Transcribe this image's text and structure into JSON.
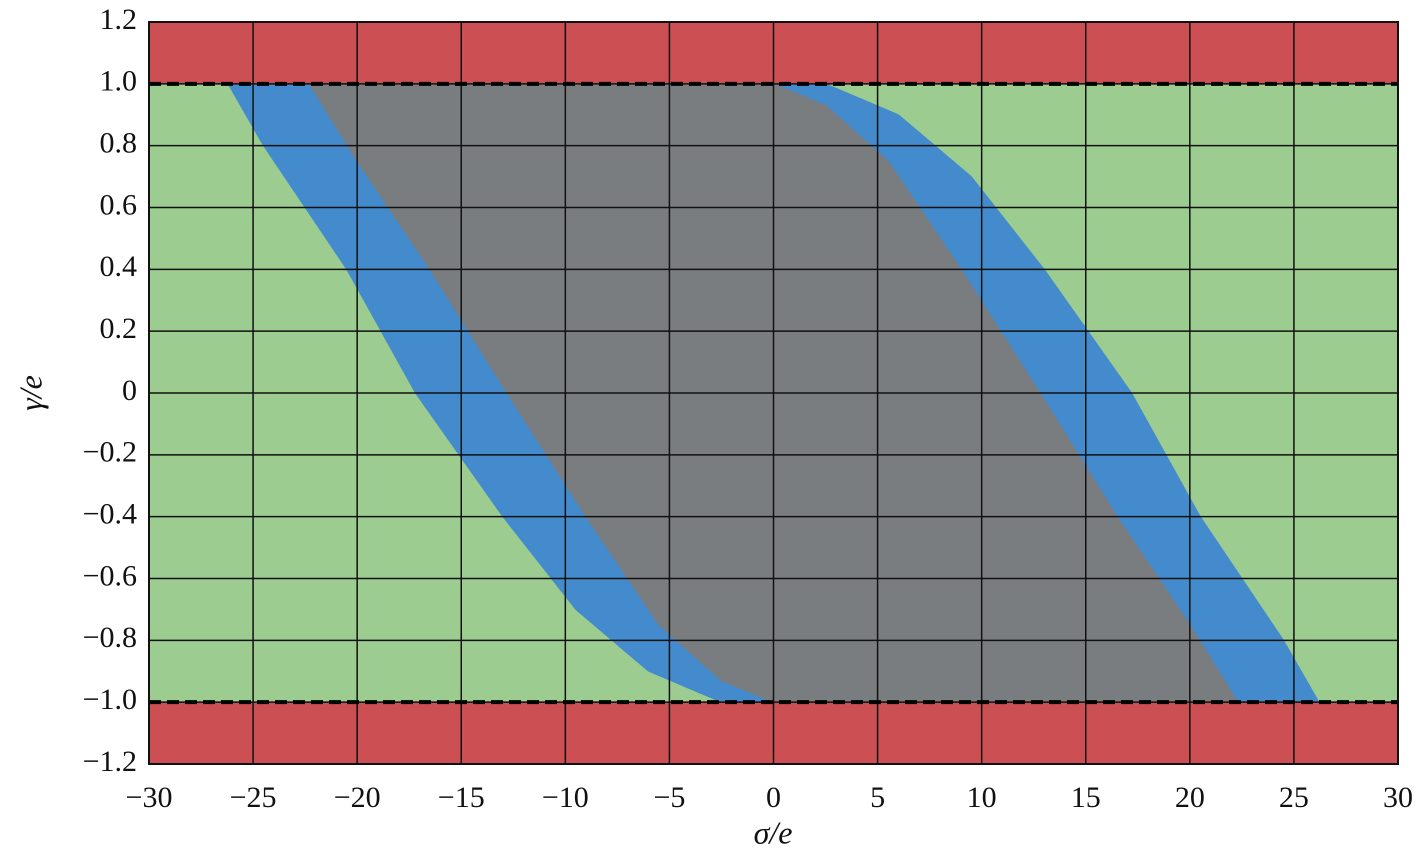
{
  "chart_data": {
    "type": "region",
    "x_label": "σ/e",
    "y_label": "γ/e",
    "xlim": [
      -30,
      30
    ],
    "ylim": [
      -1.2,
      1.2
    ],
    "xticks": [
      {
        "value": -30,
        "label": "−30"
      },
      {
        "value": -25,
        "label": "−25"
      },
      {
        "value": -20,
        "label": "−20"
      },
      {
        "value": -15,
        "label": "−15"
      },
      {
        "value": -10,
        "label": "−10"
      },
      {
        "value": -5,
        "label": "−5"
      },
      0,
      5,
      10,
      15,
      20,
      25,
      30
    ],
    "yticks": [
      {
        "value": -1.2,
        "label": "−1.2"
      },
      {
        "value": -1.0,
        "label": "−1.0"
      },
      {
        "value": -0.8,
        "label": "−0.8"
      },
      {
        "value": -0.6,
        "label": "−0.6"
      },
      {
        "value": -0.4,
        "label": "−0.4"
      },
      {
        "value": -0.2,
        "label": "−0.2"
      },
      0,
      0.2,
      0.4,
      0.6,
      0.8,
      {
        "value": 1.0,
        "label": "1.0"
      },
      1.2
    ],
    "grid": true,
    "regions": [
      {
        "color": "#9ccc90",
        "x": [
          -30,
          30,
          30,
          -30
        ],
        "y": [
          -1.2,
          -1.2,
          1.2,
          1.2
        ]
      },
      {
        "color": "#cc5053",
        "x": [
          -30,
          30,
          30,
          -30
        ],
        "y": [
          1,
          1,
          1.2,
          1.2
        ]
      },
      {
        "color": "#cc5053",
        "x": [
          -30,
          30,
          30,
          -30
        ],
        "y": [
          -1.2,
          -1.2,
          -1,
          -1
        ]
      },
      {
        "color": "#438bcc",
        "x": [
          -26.2,
          -24.5,
          -20.5,
          -17.2,
          -13,
          -9.5,
          -6,
          -2.5,
          0,
          -2.5,
          -5.5,
          -9,
          -12.8,
          -16.5,
          -20,
          -22.3
        ],
        "y": [
          1,
          0.8,
          0.4,
          0,
          -0.4,
          -0.7,
          -0.9,
          -1,
          -1,
          -0.93,
          -0.75,
          -0.4,
          0,
          0.4,
          0.75,
          1
        ]
      },
      {
        "color": "#438bcc",
        "x": [
          26.2,
          24.5,
          20.5,
          17.2,
          13,
          9.5,
          6,
          2.5,
          0,
          2.5,
          5.5,
          9,
          12.8,
          16.5,
          20,
          22.3
        ],
        "y": [
          -1,
          -0.8,
          -0.4,
          0,
          0.4,
          0.7,
          0.9,
          1,
          1,
          0.93,
          0.75,
          0.4,
          0,
          -0.4,
          -0.75,
          -1
        ]
      },
      {
        "color": "#7a7d80",
        "x": [
          -22.3,
          -20,
          -16.5,
          -12.8,
          -9,
          -5.5,
          -2.5,
          0,
          22.3,
          20,
          16.5,
          12.8,
          9,
          5.5,
          2.5,
          0
        ],
        "y": [
          1,
          0.75,
          0.4,
          0,
          -0.4,
          -0.75,
          -0.93,
          -1,
          -1,
          -0.75,
          -0.4,
          0,
          0.4,
          0.75,
          0.93,
          1
        ]
      }
    ],
    "reference_lines": [
      1,
      -1
    ]
  }
}
